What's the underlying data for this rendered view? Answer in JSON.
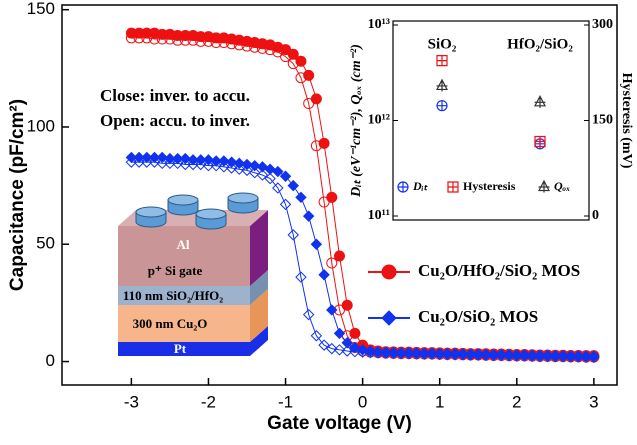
{
  "chart_data": [
    {
      "type": "line",
      "xlabel": "Gate voltage (V)",
      "ylabel": "Capacitance (pF/cm²)",
      "xlim": [
        -3.9,
        3.3
      ],
      "ylim": [
        -10,
        152
      ],
      "xticks": [
        -3,
        -2,
        -1,
        0,
        1,
        2,
        3
      ],
      "yticks": [
        0,
        50,
        100,
        150
      ],
      "legend": "right",
      "annotations": [
        "Close: inver. to accu.",
        "Open: accu. to inver."
      ],
      "device_labels": [
        "Al",
        "p⁺ Si gate",
        "110 nm SiO₂/HfO₂",
        "300 nm Cu₂O",
        "Pt"
      ],
      "x": [
        -3,
        -2.9,
        -2.8,
        -2.7,
        -2.6,
        -2.5,
        -2.4,
        -2.3,
        -2.2,
        -2.1,
        -2,
        -1.9,
        -1.8,
        -1.7,
        -1.6,
        -1.5,
        -1.4,
        -1.3,
        -1.2,
        -1.1,
        -1,
        -0.9,
        -0.8,
        -0.7,
        -0.6,
        -0.5,
        -0.4,
        -0.3,
        -0.2,
        -0.1,
        0,
        0.1,
        0.2,
        0.3,
        0.4,
        0.5,
        0.6,
        0.7,
        0.8,
        0.9,
        1,
        1.1,
        1.2,
        1.3,
        1.4,
        1.5,
        1.6,
        1.7,
        1.8,
        1.9,
        2,
        2.1,
        2.2,
        2.3,
        2.4,
        2.5,
        2.6,
        2.7,
        2.8,
        2.9,
        3
      ],
      "series": [
        {
          "name": "Cu₂O/HfO₂/SiO₂ MOS",
          "color": "#ee1111",
          "marker": "circle",
          "values": [
            140,
            140,
            140,
            140,
            139.5,
            139.5,
            139,
            139,
            139,
            138.5,
            138.5,
            138,
            138,
            137.5,
            137,
            136.5,
            136,
            135.5,
            135,
            134,
            133,
            131,
            128,
            122,
            112,
            93,
            70,
            45,
            24,
            12,
            7,
            5,
            4.5,
            4.2,
            4.1,
            4,
            4,
            3.9,
            3.8,
            3.8,
            3.7,
            3.6,
            3.6,
            3.5,
            3.4,
            3.4,
            3.3,
            3.2,
            3.2,
            3.1,
            3,
            3,
            2.9,
            2.8,
            2.8,
            2.7,
            2.7,
            2.6,
            2.6,
            2.5,
            2.5
          ],
          "open_values": [
            138,
            138,
            138,
            137.5,
            137.5,
            137.5,
            137,
            137,
            137,
            136.5,
            136.5,
            136,
            136,
            135.5,
            135,
            134.5,
            134,
            133.5,
            133,
            132,
            130,
            127,
            121,
            110,
            92,
            68,
            42,
            22,
            11,
            6,
            4.5,
            4,
            3.8,
            3.6,
            3.5,
            3.4,
            3.4,
            3.3,
            3.2,
            3.2,
            3.1,
            3,
            3,
            2.9,
            2.8,
            2.8,
            2.7,
            2.6,
            2.6,
            2.5,
            2.4,
            2.4,
            2.3,
            2.2,
            2.2,
            2.1,
            2.1,
            2,
            2,
            1.9,
            1.9
          ]
        },
        {
          "name": "Cu₂O/SiO₂ MOS",
          "color": "#1133ee",
          "marker": "diamond",
          "values": [
            87,
            87,
            87,
            87,
            87,
            86.5,
            86.5,
            86.5,
            86,
            86,
            86,
            85.5,
            85.5,
            85,
            84.5,
            84,
            83.5,
            83,
            82,
            81,
            79,
            75,
            70,
            62,
            50,
            37,
            22,
            12,
            8,
            6,
            5,
            4.5,
            4.2,
            4,
            3.9,
            3.8,
            3.8,
            3.7,
            3.6,
            3.6,
            3.5,
            3.4,
            3.4,
            3.3,
            3.2,
            3.2,
            3.1,
            3,
            3,
            2.9,
            2.8,
            2.8,
            2.7,
            2.6,
            2.6,
            2.5,
            2.5,
            2.4,
            2.4,
            2.3,
            2.3
          ],
          "open_values": [
            85,
            85,
            85,
            85,
            84.5,
            84.5,
            84.5,
            84,
            84,
            84,
            83.5,
            83.5,
            83,
            82.5,
            82,
            81.5,
            80.5,
            79.5,
            78,
            74,
            67,
            54,
            36,
            20,
            11,
            7,
            5.5,
            5,
            4.5,
            4.2,
            4,
            3.8,
            3.6,
            3.5,
            3.4,
            3.3,
            3.3,
            3.2,
            3.1,
            3.1,
            3,
            2.9,
            2.9,
            2.8,
            2.7,
            2.7,
            2.6,
            2.5,
            2.5,
            2.4,
            2.3,
            2.3,
            2.2,
            2.1,
            2.1,
            2,
            2,
            1.9,
            1.9,
            1.8,
            1.8
          ]
        }
      ]
    },
    {
      "type": "scatter",
      "ylabel": "Dᵢₜ (eV⁻¹cm⁻²), Qₒₓ (cm⁻²)",
      "y2label": "Hysteresis (mV)",
      "categories": [
        "SiO₂",
        "HfO₂/SiO₂"
      ],
      "log_y": true,
      "ylim": [
        100000000000.0,
        10000000000000.0
      ],
      "yticks": [
        {
          "value": 100000000000.0,
          "label": "10¹¹"
        },
        {
          "value": 1000000000000.0,
          "label": "10¹²"
        },
        {
          "value": 10000000000000.0,
          "label": "10¹³"
        }
      ],
      "y2lim": [
        0,
        300
      ],
      "y2ticks": [
        0,
        150,
        300
      ],
      "series": [
        {
          "name": "Dᵢₜ",
          "color": "#1133ee",
          "marker": "circle-plus",
          "values": [
            1430000000000.0,
            570000000000.0
          ]
        },
        {
          "name": "Hysteresis",
          "color": "#ee1111",
          "marker": "square-plus",
          "axis": "y2",
          "values": [
            244,
            117
          ]
        },
        {
          "name": "Qₒₓ",
          "color": "#333333",
          "marker": "triangle-plus",
          "values": [
            2300000000000.0,
            1550000000000.0
          ]
        }
      ]
    }
  ]
}
